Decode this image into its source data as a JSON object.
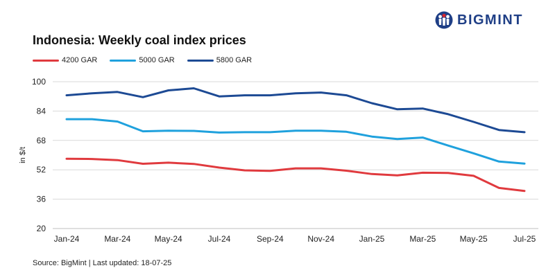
{
  "brand": {
    "name": "BIGMINT",
    "logo_icon": "bigmint-figures-icon",
    "color": "#1f3f86",
    "accent": "#d7262e"
  },
  "chart_data": {
    "type": "line",
    "title": "Indonesia: Weekly coal index prices",
    "ylabel": "in $/t",
    "xlabel": "",
    "ylim": [
      20,
      100
    ],
    "yticks": [
      20,
      36,
      52,
      68,
      84,
      100
    ],
    "xticks": [
      "Jan-24",
      "Mar-24",
      "May-24",
      "Jul-24",
      "Sep-24",
      "Nov-24",
      "Jan-25",
      "Mar-25",
      "May-25",
      "Jul-25"
    ],
    "grid": "horizontal",
    "legend_position": "top-left",
    "x": [
      "Jan-24",
      "Feb-24",
      "Mar-24",
      "Apr-24",
      "May-24",
      "Jun-24",
      "Jul-24",
      "Aug-24",
      "Sep-24",
      "Oct-24",
      "Nov-24",
      "Dec-24",
      "Jan-25",
      "Feb-25",
      "Mar-25",
      "Apr-25",
      "May-25",
      "Jun-25",
      "Jul-25"
    ],
    "series": [
      {
        "name": "4200 GAR",
        "color": "#e03a3e",
        "values": [
          58.0,
          57.9,
          57.3,
          55.3,
          55.9,
          55.2,
          53.2,
          51.7,
          51.4,
          52.8,
          52.8,
          51.5,
          49.7,
          49.0,
          50.4,
          50.3,
          48.7,
          42.1,
          40.5
        ]
      },
      {
        "name": "5000 GAR",
        "color": "#1fa1dd",
        "values": [
          79.6,
          79.6,
          78.3,
          73.0,
          73.3,
          73.2,
          72.3,
          72.5,
          72.5,
          73.3,
          73.3,
          72.7,
          70.1,
          68.8,
          69.6,
          65.2,
          61.0,
          56.5,
          55.4
        ]
      },
      {
        "name": "5800 GAR",
        "color": "#1d4a94",
        "values": [
          92.6,
          93.7,
          94.4,
          91.6,
          95.3,
          96.4,
          92.0,
          92.6,
          92.6,
          93.7,
          94.1,
          92.6,
          88.3,
          85.0,
          85.4,
          82.3,
          78.1,
          73.7,
          72.5
        ]
      }
    ]
  },
  "footer": {
    "source": "Source: BigMint | Last updated: 18-07-25"
  }
}
